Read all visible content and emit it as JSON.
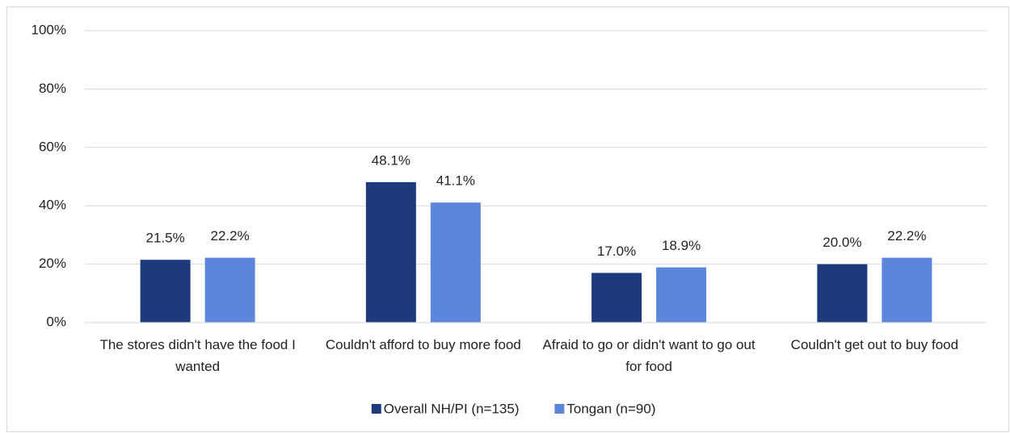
{
  "chart_data": {
    "type": "bar",
    "categories": [
      "The stores didn't have the food I wanted",
      "Couldn't afford to buy more food",
      "Afraid to go or didn't want to go out for food",
      "Couldn't get out to buy food"
    ],
    "series": [
      {
        "name": "Overall NH/PI (n=135)",
        "color": "#1c3a7c",
        "values": [
          21.5,
          48.1,
          17.0,
          20.0
        ],
        "value_labels": [
          "21.5%",
          "48.1%",
          "17.0%",
          "20.0%"
        ]
      },
      {
        "name": "Tongan (n=90)",
        "color": "#5b86da",
        "values": [
          22.2,
          41.1,
          18.9,
          22.2
        ],
        "value_labels": [
          "22.2%",
          "41.1%",
          "18.9%",
          "22.2%"
        ]
      }
    ],
    "ylim": [
      0,
      100
    ],
    "yticks": [
      {
        "value": 0,
        "label": "0%"
      },
      {
        "value": 20,
        "label": "20%"
      },
      {
        "value": 40,
        "label": "40%"
      },
      {
        "value": 60,
        "label": "60%"
      },
      {
        "value": 80,
        "label": "80%"
      },
      {
        "value": 100,
        "label": "100%"
      }
    ],
    "grid": true,
    "legend": "bottom"
  }
}
